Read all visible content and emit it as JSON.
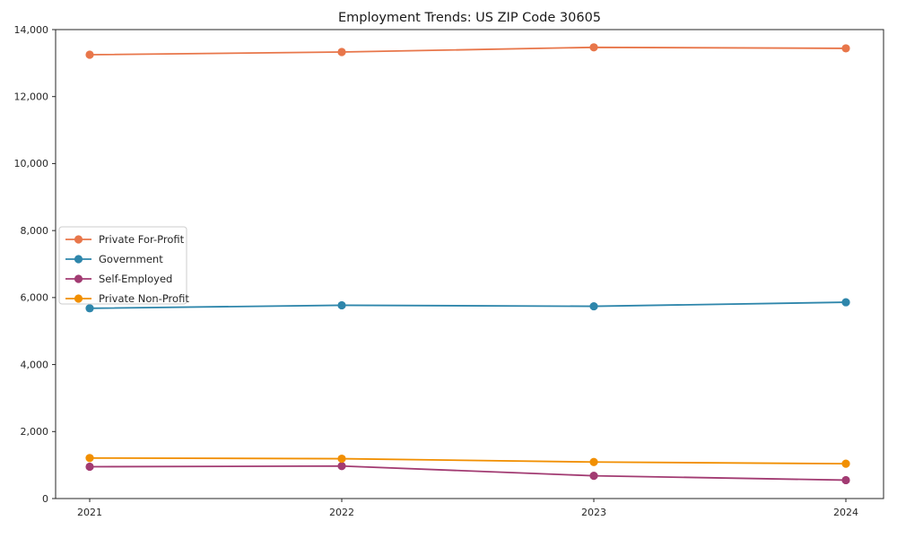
{
  "chart_data": {
    "type": "line",
    "title": "Employment Trends: US ZIP Code 30605",
    "xlabel": "",
    "ylabel": "",
    "categories": [
      "2021",
      "2022",
      "2023",
      "2024"
    ],
    "series": [
      {
        "name": "Private For-Profit",
        "color": "#E8764A",
        "values": [
          13250,
          13330,
          13470,
          13440
        ]
      },
      {
        "name": "Government",
        "color": "#2E86AB",
        "values": [
          5680,
          5770,
          5740,
          5860
        ]
      },
      {
        "name": "Self-Employed",
        "color": "#A23B72",
        "values": [
          950,
          970,
          680,
          550
        ]
      },
      {
        "name": "Private Non-Profit",
        "color": "#F18F01",
        "values": [
          1210,
          1190,
          1090,
          1040
        ]
      }
    ],
    "ylim": [
      0,
      14000
    ],
    "ytick_step": 2000,
    "ytick_labels": [
      "0",
      "2,000",
      "4,000",
      "6,000",
      "8,000",
      "10,000",
      "12,000",
      "14,000"
    ],
    "grid": false,
    "marker": "circle",
    "legend_position": "middle-left",
    "axis_color": "#262626"
  }
}
